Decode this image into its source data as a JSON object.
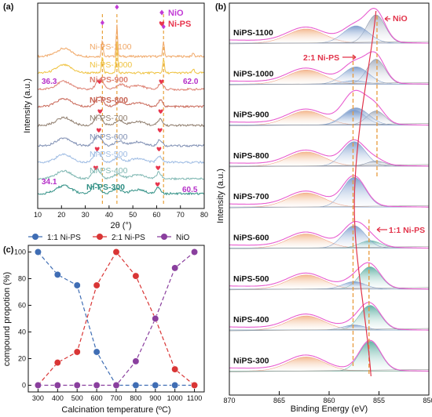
{
  "chart_data": [
    {
      "type": "line",
      "panel_label": "(a)",
      "xlabel": "2θ (°)",
      "ylabel": "Intensity (a.u.)",
      "x_ticks": [
        10,
        20,
        30,
        40,
        50,
        60,
        70,
        80
      ],
      "xlim": [
        10,
        80
      ],
      "legend": [
        {
          "name": "NiO",
          "marker": "diamond",
          "color": "#c23bd6"
        },
        {
          "name": "Ni-PS",
          "marker": "heart",
          "color": "#e8364e"
        }
      ],
      "series": [
        {
          "name": "Ni-PS-1100",
          "color": "#f0a766"
        },
        {
          "name": "Ni-PS-1000",
          "color": "#efc23f"
        },
        {
          "name": "Ni-PS-900",
          "color": "#dd7f70"
        },
        {
          "name": "Ni-PS-800",
          "color": "#c86555"
        },
        {
          "name": "Ni-PS-700",
          "color": "#8e7c6c"
        },
        {
          "name": "Ni-PS-600",
          "color": "#7f8fb3"
        },
        {
          "name": "Ni-PS-500",
          "color": "#9dbbe3"
        },
        {
          "name": "Ni-PS-400",
          "color": "#7fb7b2"
        },
        {
          "name": "Ni-PS-300",
          "color": "#2f8f84"
        }
      ],
      "reference_lines_x": [
        37.2,
        43.3,
        62.9
      ],
      "annotations": [
        {
          "text": "36.3",
          "color": "#b52fc8"
        },
        {
          "text": "62.0",
          "color": "#b52fc8"
        },
        {
          "text": "34.1",
          "color": "#b52fc8"
        },
        {
          "text": "60.5",
          "color": "#b52fc8"
        }
      ],
      "grid": false
    },
    {
      "type": "line",
      "panel_label": "(b)",
      "xlabel": "Binding Energy (eV)",
      "ylabel": "Intensity (a.u.)",
      "x_ticks": [
        870,
        865,
        860,
        855,
        850
      ],
      "xlim": [
        870,
        850
      ],
      "x_reversed": true,
      "series": [
        {
          "name": "NiPS-1100"
        },
        {
          "name": "NiPS-1000"
        },
        {
          "name": "NiPS-900"
        },
        {
          "name": "NiPS-800"
        },
        {
          "name": "NiPS-700"
        },
        {
          "name": "NiPS-600"
        },
        {
          "name": "NiPS-500"
        },
        {
          "name": "NiPS-400"
        },
        {
          "name": "NiPS-300"
        }
      ],
      "reference_lines_x": [
        857.6,
        855.3,
        855.9
      ],
      "annotations": [
        {
          "text": "NiO",
          "color": "#e2334a"
        },
        {
          "text": "2:1 Ni-PS",
          "color": "#e2334a"
        },
        {
          "text": "1:1 Ni-PS",
          "color": "#e2334a"
        }
      ],
      "grid": false
    },
    {
      "type": "line",
      "panel_label": "(c)",
      "xlabel": "Calcination temperature (ºC)",
      "ylabel": "compound propotion (%)",
      "categories": [
        300,
        400,
        500,
        600,
        700,
        800,
        900,
        1000,
        1100
      ],
      "xlim": [
        250,
        1150
      ],
      "ylim": [
        -5,
        105
      ],
      "y_ticks": [
        0,
        20,
        40,
        60,
        80,
        100
      ],
      "legend_position": "top",
      "series": [
        {
          "name": "1:1 Ni-PS",
          "color": "#3f6db4",
          "values": [
            100,
            83,
            75,
            25,
            0,
            0,
            0,
            0,
            0
          ]
        },
        {
          "name": "2:1 Ni-PS",
          "color": "#d93535",
          "values": [
            0,
            17,
            25,
            75,
            100,
            82,
            50,
            12,
            0
          ]
        },
        {
          "name": "NiO",
          "color": "#8a3f9e",
          "values": [
            0,
            0,
            0,
            0,
            0,
            18,
            50,
            88,
            100
          ]
        }
      ],
      "grid": false
    }
  ]
}
